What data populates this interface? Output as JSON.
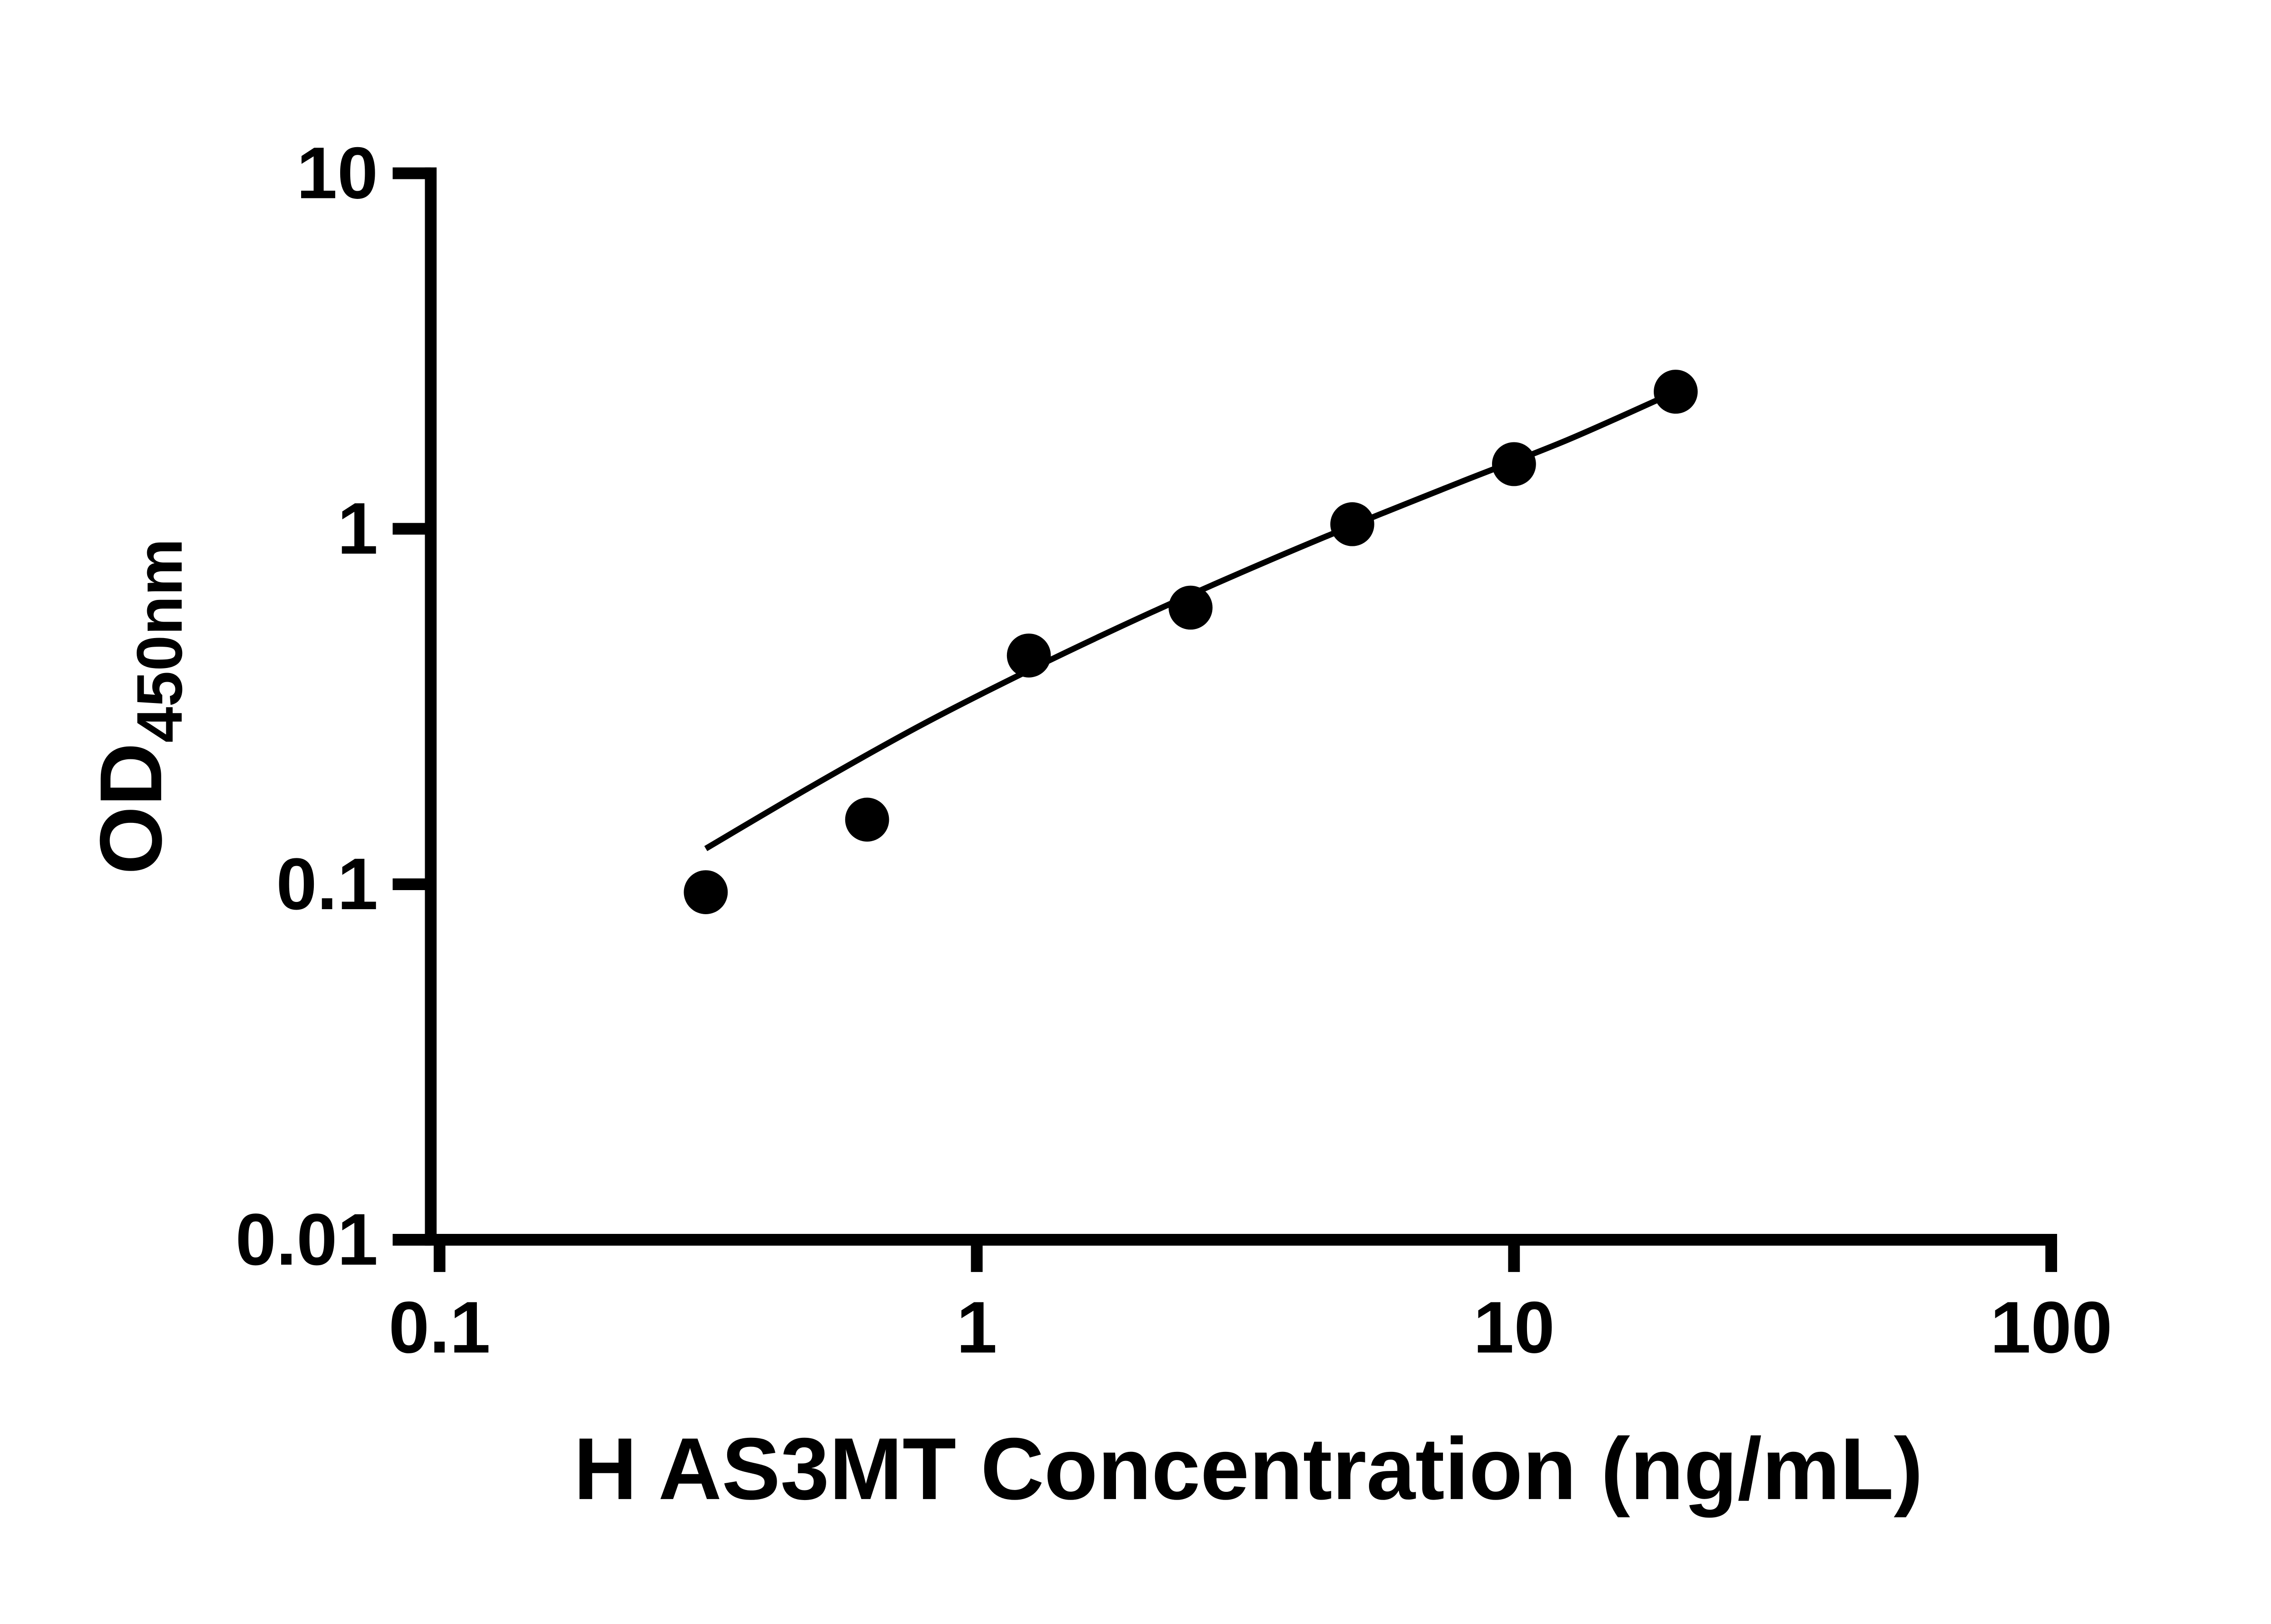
{
  "chart": {
    "ylabel_main": "OD",
    "ylabel_sub": "450nm",
    "background": "#ffffff",
    "axis_color": "#000000",
    "point_color": "#000000",
    "curve_color": "#000000"
  },
  "chart_data": {
    "type": "scatter",
    "title": "",
    "xlabel": "H AS3MT Concentration (ng/mL)",
    "ylabel": "OD450nm",
    "x_scale": "log",
    "y_scale": "log",
    "xlim": [
      0.1,
      100
    ],
    "ylim": [
      0.01,
      10
    ],
    "x_ticks": [
      0.1,
      1,
      10,
      100
    ],
    "x_tick_labels": [
      "0.1",
      "1",
      "10",
      "100"
    ],
    "y_ticks": [
      0.01,
      0.1,
      1,
      10
    ],
    "y_tick_labels": [
      "0.01",
      "0.1",
      "1",
      "10"
    ],
    "grid": false,
    "legend": false,
    "series": [
      {
        "name": "standard-points",
        "type": "scatter",
        "x": [
          0.313,
          0.625,
          1.25,
          2.5,
          5,
          10,
          20
        ],
        "y": [
          0.095,
          0.152,
          0.44,
          0.6,
          1.03,
          1.52,
          2.43
        ]
      },
      {
        "name": "fit-curve",
        "type": "line",
        "x": [
          0.313,
          0.5,
          0.79,
          1.26,
          2.0,
          3.16,
          5.0,
          7.94,
          12.6,
          20.0
        ],
        "y": [
          0.126,
          0.191,
          0.281,
          0.402,
          0.56,
          0.762,
          1.021,
          1.352,
          1.78,
          2.43
        ]
      }
    ]
  }
}
